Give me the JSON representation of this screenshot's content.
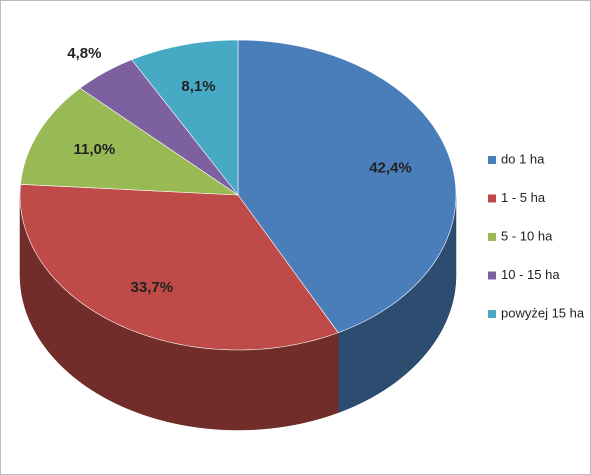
{
  "chart_data": {
    "type": "pie",
    "categories": [
      "do 1 ha",
      "1 - 5 ha",
      "5 - 10 ha",
      "10 - 15 ha",
      "powyżej 15 ha"
    ],
    "values": [
      42.4,
      33.7,
      11.0,
      4.8,
      8.1
    ],
    "value_labels": [
      "42,4%",
      "33,7%",
      "11,0%",
      "4,8%",
      "8,1%"
    ],
    "colors": [
      "#4a7ebb",
      "#be4b48",
      "#98b954",
      "#7d60a0",
      "#46aac5"
    ],
    "legend": "right"
  }
}
